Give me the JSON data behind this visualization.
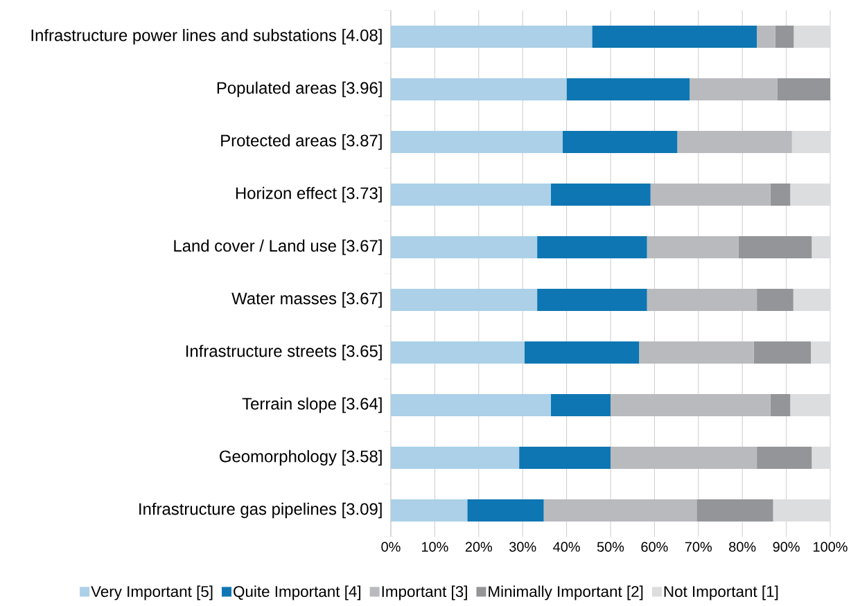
{
  "chart_data": {
    "type": "bar",
    "orientation": "horizontal",
    "stacked": true,
    "categories": [
      "Infrastructure power lines and substations [4.08]",
      "Populated areas [3.96]",
      "Protected areas [3.87]",
      "Horizon effect [3.73]",
      "Land cover / Land use [3.67]",
      "Water masses [3.67]",
      "Infrastructure streets [3.65]",
      "Terrain slope [3.64]",
      "Geomorphology [3.58]",
      "Infrastructure gas pipelines [3.09]"
    ],
    "series": [
      {
        "name": "Very Important [5]",
        "color": "#abd0e8",
        "values": [
          45.8,
          40,
          39.1,
          36.4,
          33.3,
          33.3,
          30.4,
          36.4,
          29.2,
          17.4
        ]
      },
      {
        "name": "Quite Important [4]",
        "color": "#0e76b2",
        "values": [
          37.5,
          28,
          26.1,
          22.7,
          25,
          25,
          26.1,
          13.6,
          20.8,
          17.4
        ]
      },
      {
        "name": "Important [3]",
        "color": "#b9babe",
        "values": [
          4.2,
          20,
          26.1,
          27.3,
          20.8,
          25,
          26.1,
          36.4,
          33.3,
          34.8
        ]
      },
      {
        "name": "Minimally Important [2]",
        "color": "#939598",
        "values": [
          4.2,
          12,
          0,
          4.5,
          16.7,
          8.3,
          13.0,
          4.5,
          12.5,
          17.4
        ]
      },
      {
        "name": "Not Important [1]",
        "color": "#dcdddf",
        "values": [
          8.3,
          0,
          8.7,
          9.1,
          4.2,
          8.4,
          4.4,
          9.1,
          4.2,
          13.0
        ]
      }
    ],
    "xlim": [
      0,
      100
    ],
    "xticks": [
      {
        "value": 0,
        "label": "0%"
      },
      {
        "value": 10,
        "label": "10%"
      },
      {
        "value": 20,
        "label": "20%"
      },
      {
        "value": 30,
        "label": "30%"
      },
      {
        "value": 40,
        "label": "40%"
      },
      {
        "value": 50,
        "label": "50%"
      },
      {
        "value": 60,
        "label": "60%"
      },
      {
        "value": 70,
        "label": "70%"
      },
      {
        "value": 80,
        "label": "80%"
      },
      {
        "value": 90,
        "label": "90%"
      },
      {
        "value": 100,
        "label": "100%"
      }
    ],
    "grid": "x",
    "legend": "bottom"
  }
}
